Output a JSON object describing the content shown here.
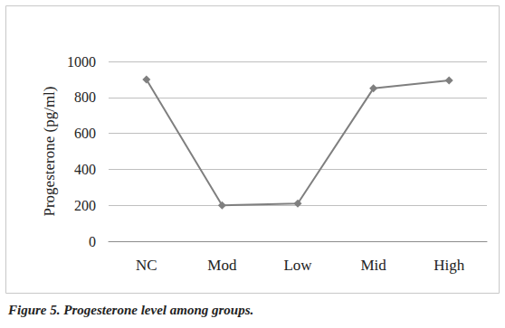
{
  "chart_data": {
    "type": "line",
    "title": "Figure 5. Progesterone level among groups.",
    "y_label": "Progesterone (pg/ml)",
    "categories": [
      "NC",
      "Mod",
      "Low",
      "Mid",
      "High"
    ],
    "values": [
      900,
      200,
      210,
      850,
      895
    ],
    "color": "#7f7f7f",
    "marker": "diamond",
    "ylim": [
      0,
      1000
    ],
    "yticks": [
      0,
      200,
      400,
      600,
      800,
      1000
    ],
    "grid": true
  }
}
